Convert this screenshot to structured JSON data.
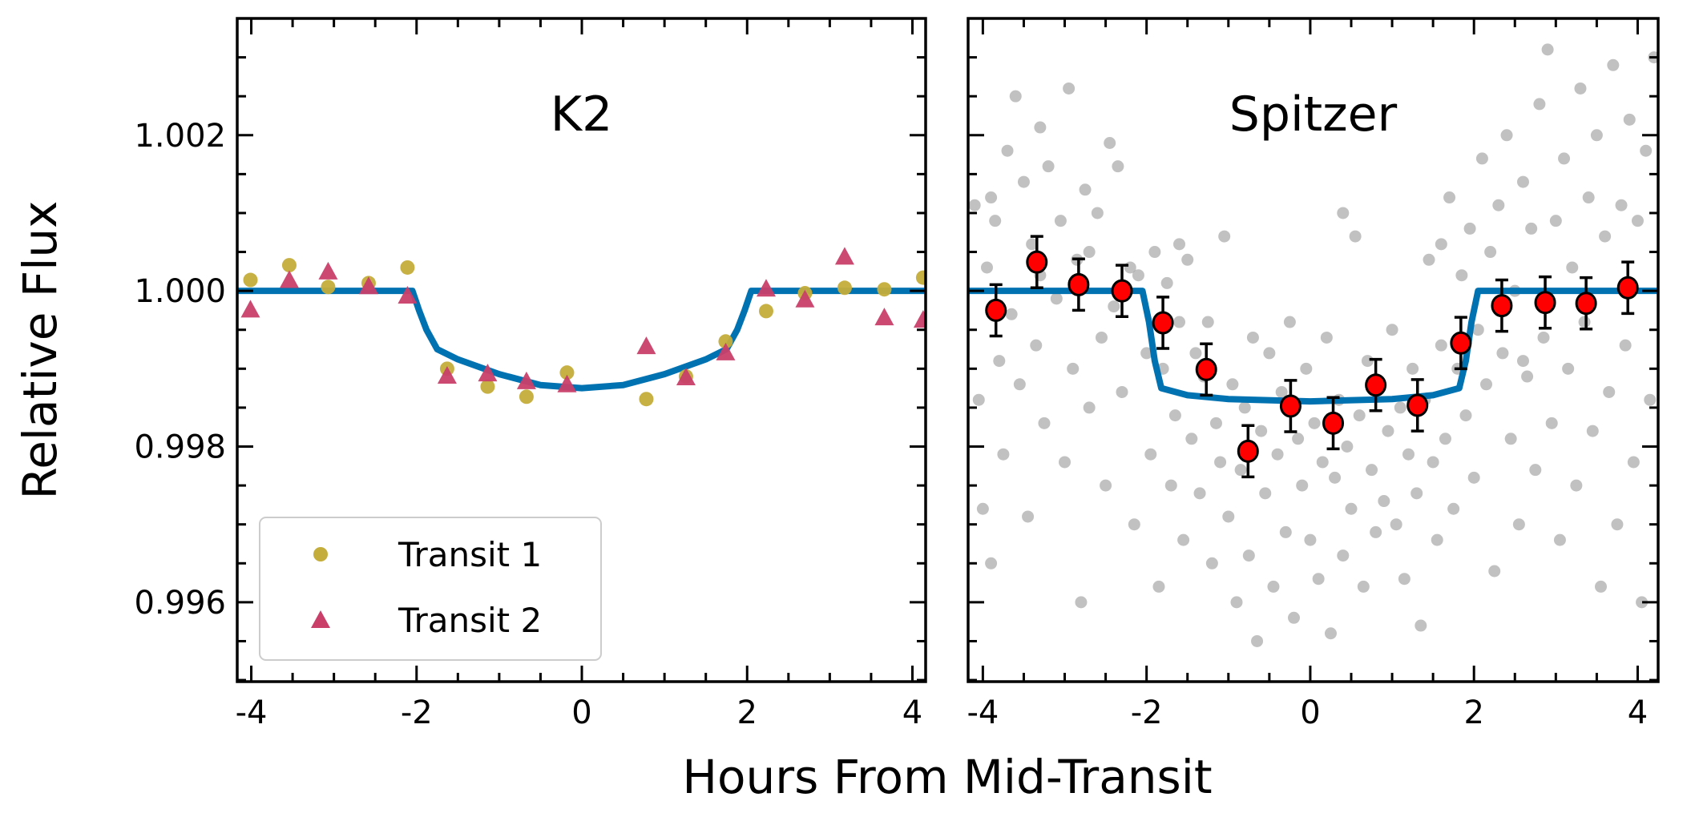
{
  "figure": {
    "ylabel": "Relative Flux",
    "xlabel": "Hours From Mid-Transit"
  },
  "chart_data": [
    {
      "type": "scatter",
      "title": "K2",
      "xlim": [
        -4.17,
        4.16
      ],
      "ylim": [
        0.99498,
        1.0035
      ],
      "xticks": [
        -4,
        -2,
        0,
        2,
        4
      ],
      "xtick_labels": [
        "-4",
        "-2",
        "0",
        "2",
        "4"
      ],
      "yticks": [
        0.996,
        0.998,
        1.0,
        1.002
      ],
      "ytick_labels": [
        "0.996",
        "0.998",
        "1.000",
        "1.002"
      ],
      "grid": false,
      "legend_position": "lower-left",
      "colors": {
        "transit1": "#c4ad3a",
        "transit2": "#c93f6a",
        "model": "#0072b2"
      },
      "series": [
        {
          "name": "Transit 1",
          "marker": "circle",
          "x": [
            -4.01,
            -3.54,
            -3.07,
            -2.58,
            -2.11,
            -1.63,
            -1.14,
            -0.67,
            -0.18,
            0.78,
            1.26,
            1.74,
            2.23,
            2.7,
            3.18,
            3.66,
            4.13
          ],
          "y": [
            1.00014,
            1.00033,
            1.00005,
            1.0001,
            1.0003,
            0.999,
            0.99877,
            0.99864,
            0.99895,
            0.99861,
            0.9989,
            0.99935,
            0.99974,
            0.99997,
            1.00004,
            1.00002,
            1.00017
          ]
        },
        {
          "name": "Transit 2",
          "marker": "triangle",
          "x": [
            -4.01,
            -3.54,
            -3.07,
            -2.58,
            -2.11,
            -1.63,
            -1.14,
            -0.67,
            -0.18,
            0.78,
            1.26,
            1.74,
            2.23,
            2.7,
            3.18,
            3.66,
            4.13
          ],
          "y": [
            0.99975,
            1.00013,
            1.00024,
            1.00005,
            0.99993,
            0.9989,
            0.99893,
            0.99883,
            0.99879,
            0.99928,
            0.99888,
            0.9992,
            1.00002,
            0.99988,
            1.00043,
            0.99965,
            0.99962
          ]
        }
      ],
      "model": [
        [
          -4.17,
          1
        ],
        [
          -2.05,
          1
        ],
        [
          -1.97,
          0.99975
        ],
        [
          -1.88,
          0.9995
        ],
        [
          -1.75,
          0.99925
        ],
        [
          -1.5,
          0.99912
        ],
        [
          -1,
          0.99893
        ],
        [
          -0.5,
          0.99879
        ],
        [
          0,
          0.99875
        ],
        [
          0.5,
          0.99879
        ],
        [
          1,
          0.99893
        ],
        [
          1.5,
          0.99912
        ],
        [
          1.75,
          0.99925
        ],
        [
          1.88,
          0.9995
        ],
        [
          1.97,
          0.99975
        ],
        [
          2.05,
          1
        ],
        [
          4.16,
          1
        ]
      ]
    },
    {
      "type": "scatter",
      "title": "Spitzer",
      "xlim": [
        -4.18,
        4.25
      ],
      "ylim": [
        0.99498,
        1.0035
      ],
      "xticks": [
        -4,
        -2,
        0,
        2,
        4
      ],
      "xtick_labels": [
        "-4",
        "-2",
        "0",
        "2",
        "4"
      ],
      "yticks": [
        0.996,
        0.998,
        1.0,
        1.002
      ],
      "grid": false,
      "colors": {
        "unbinned": "#a0a0a0",
        "binned": "#ff0000",
        "model": "#0072b2"
      },
      "unbinned": [
        [
          -4.1,
          1.0011
        ],
        [
          -4.05,
          0.9986
        ],
        [
          -4.0,
          0.9972
        ],
        [
          -3.95,
          1.0003
        ],
        [
          -3.9,
          0.9965
        ],
        [
          -3.85,
          1.0009
        ],
        [
          -3.8,
          0.9991
        ],
        [
          -3.75,
          0.9979
        ],
        [
          -3.7,
          1.0018
        ],
        [
          -3.65,
          0.9997
        ],
        [
          -3.6,
          1.0025
        ],
        [
          -3.55,
          0.9988
        ],
        [
          -3.5,
          1.0014
        ],
        [
          -3.45,
          0.9971
        ],
        [
          -3.4,
          1.0006
        ],
        [
          -3.35,
          0.9993
        ],
        [
          -3.3,
          1.0021
        ],
        [
          -3.25,
          0.9983
        ],
        [
          -3.2,
          1.0016
        ],
        [
          -3.1,
          0.9999
        ],
        [
          -3.05,
          1.0009
        ],
        [
          -3.0,
          0.9978
        ],
        [
          -2.95,
          1.0026
        ],
        [
          -2.9,
          0.999
        ],
        [
          -2.85,
          1.0004
        ],
        [
          -2.8,
          0.996
        ],
        [
          -2.75,
          1.0013
        ],
        [
          -2.7,
          0.9985
        ],
        [
          -2.6,
          1.001
        ],
        [
          -2.55,
          0.9994
        ],
        [
          -2.5,
          0.9975
        ],
        [
          -2.45,
          1.0019
        ],
        [
          -2.4,
          0.9998
        ],
        [
          -2.35,
          1.0016
        ],
        [
          -2.3,
          0.9987
        ],
        [
          -2.2,
          1.0003
        ],
        [
          -2.15,
          0.997
        ],
        [
          -2.1,
          1.0002
        ],
        [
          -2.0,
          0.9992
        ],
        [
          -1.95,
          0.9979
        ],
        [
          -1.9,
          1.0005
        ],
        [
          -1.85,
          0.9962
        ],
        [
          -1.8,
          0.999
        ],
        [
          -1.75,
          1.0001
        ],
        [
          -1.7,
          0.9975
        ],
        [
          -1.65,
          0.9984
        ],
        [
          -1.6,
          0.9996
        ],
        [
          -1.55,
          0.9968
        ],
        [
          -1.5,
          1.0004
        ],
        [
          -1.45,
          0.9981
        ],
        [
          -1.4,
          0.9992
        ],
        [
          -1.35,
          0.9974
        ],
        [
          -1.3,
          0.9989
        ],
        [
          -1.25,
          0.9996
        ],
        [
          -1.2,
          0.9965
        ],
        [
          -1.15,
          0.9983
        ],
        [
          -1.1,
          0.9978
        ],
        [
          -1.05,
          1.0007
        ],
        [
          -1.0,
          0.9971
        ],
        [
          -0.95,
          0.9988
        ],
        [
          -0.9,
          0.996
        ],
        [
          -0.85,
          0.9977
        ],
        [
          -0.8,
          0.9985
        ],
        [
          -0.75,
          0.9966
        ],
        [
          -0.7,
          0.9994
        ],
        [
          -0.65,
          0.9955
        ],
        [
          -0.6,
          0.9982
        ],
        [
          -0.55,
          0.9974
        ],
        [
          -0.5,
          0.9992
        ],
        [
          -0.45,
          0.9962
        ],
        [
          -0.4,
          0.9979
        ],
        [
          -0.35,
          0.9987
        ],
        [
          -0.3,
          0.9969
        ],
        [
          -0.25,
          0.9996
        ],
        [
          -0.2,
          0.9958
        ],
        [
          -0.15,
          0.9981
        ],
        [
          -0.1,
          0.9975
        ],
        [
          -0.05,
          0.999
        ],
        [
          0.0,
          0.9968
        ],
        [
          0.05,
          0.9983
        ],
        [
          0.1,
          0.9963
        ],
        [
          0.15,
          0.9978
        ],
        [
          0.2,
          0.9994
        ],
        [
          0.25,
          0.9956
        ],
        [
          0.3,
          0.9976
        ],
        [
          0.35,
          0.9986
        ],
        [
          0.4,
          0.9966
        ],
        [
          0.45,
          0.998
        ],
        [
          0.5,
          0.9972
        ],
        [
          0.55,
          1.0007
        ],
        [
          0.6,
          0.9984
        ],
        [
          0.65,
          0.9962
        ],
        [
          0.7,
          0.9991
        ],
        [
          0.75,
          0.9977
        ],
        [
          0.8,
          0.9969
        ],
        [
          0.85,
          0.9988
        ],
        [
          0.9,
          0.9973
        ],
        [
          0.95,
          0.9982
        ],
        [
          1.0,
          0.9995
        ],
        [
          1.05,
          0.997
        ],
        [
          1.1,
          0.9985
        ],
        [
          1.15,
          0.9963
        ],
        [
          1.2,
          0.9979
        ],
        [
          1.25,
          0.999
        ],
        [
          1.3,
          0.9974
        ],
        [
          1.35,
          0.9957
        ],
        [
          1.4,
          0.9986
        ],
        [
          1.45,
          1.0004
        ],
        [
          1.5,
          0.9978
        ],
        [
          1.55,
          0.9968
        ],
        [
          1.6,
          0.9993
        ],
        [
          1.65,
          0.9981
        ],
        [
          1.7,
          1.0012
        ],
        [
          1.75,
          0.9972
        ],
        [
          1.8,
          0.999
        ],
        [
          1.85,
          1.0002
        ],
        [
          1.9,
          0.9984
        ],
        [
          1.95,
          1.0008
        ],
        [
          2.0,
          0.9976
        ],
        [
          2.05,
          0.9995
        ],
        [
          2.1,
          1.0017
        ],
        [
          2.15,
          0.9988
        ],
        [
          2.2,
          1.0005
        ],
        [
          2.25,
          0.9964
        ],
        [
          2.3,
          1.0011
        ],
        [
          2.35,
          0.9992
        ],
        [
          2.4,
          1.002
        ],
        [
          2.45,
          0.9981
        ],
        [
          2.5,
          1.0
        ],
        [
          2.55,
          0.997
        ],
        [
          2.6,
          1.0014
        ],
        [
          2.65,
          0.9989
        ],
        [
          2.7,
          1.0008
        ],
        [
          2.75,
          0.9977
        ],
        [
          2.8,
          1.0024
        ],
        [
          2.85,
          0.9994
        ],
        [
          2.9,
          1.0031
        ],
        [
          2.95,
          0.9983
        ],
        [
          3.0,
          1.0009
        ],
        [
          3.05,
          0.9968
        ],
        [
          3.1,
          1.0017
        ],
        [
          3.15,
          0.999
        ],
        [
          3.2,
          1.0003
        ],
        [
          3.25,
          0.9975
        ],
        [
          3.3,
          1.0026
        ],
        [
          3.35,
          0.9996
        ],
        [
          3.4,
          1.0012
        ],
        [
          3.45,
          0.9982
        ],
        [
          3.5,
          1.002
        ],
        [
          3.55,
          0.9962
        ],
        [
          3.6,
          1.0007
        ],
        [
          3.65,
          0.9987
        ],
        [
          3.7,
          1.0029
        ],
        [
          3.75,
          0.997
        ],
        [
          3.8,
          1.0011
        ],
        [
          3.85,
          0.9993
        ],
        [
          3.9,
          1.0022
        ],
        [
          3.95,
          0.9978
        ],
        [
          4.0,
          1.0009
        ],
        [
          4.05,
          0.996
        ],
        [
          4.1,
          1.0018
        ],
        [
          4.15,
          0.9986
        ],
        [
          4.2,
          1.003
        ],
        [
          -3.9,
          1.0012
        ],
        [
          -3.3,
          1.0002
        ],
        [
          -2.7,
          1.0005
        ],
        [
          -1.6,
          1.0006
        ],
        [
          0.4,
          1.001
        ],
        [
          1.6,
          1.0006
        ],
        [
          2.6,
          0.9991
        ]
      ],
      "binned": {
        "x": [
          -3.84,
          -3.34,
          -2.83,
          -2.3,
          -1.8,
          -1.27,
          -0.76,
          -0.24,
          0.28,
          0.8,
          1.31,
          1.84,
          2.34,
          2.87,
          3.37,
          3.88
        ],
        "y": [
          0.99975,
          1.00037,
          1.00008,
          1.0,
          0.99959,
          0.99899,
          0.99794,
          0.99852,
          0.9983,
          0.99879,
          0.99853,
          0.99933,
          0.99981,
          0.99985,
          0.99984,
          1.00004
        ],
        "yerr": 0.00033
      },
      "model": [
        [
          -4.18,
          1
        ],
        [
          -2.05,
          1
        ],
        [
          -1.97,
          0.9996
        ],
        [
          -1.9,
          0.9991
        ],
        [
          -1.82,
          0.99875
        ],
        [
          -1.5,
          0.99866
        ],
        [
          -1,
          0.99861
        ],
        [
          0,
          0.99858
        ],
        [
          1,
          0.99861
        ],
        [
          1.5,
          0.99866
        ],
        [
          1.82,
          0.99875
        ],
        [
          1.9,
          0.9991
        ],
        [
          1.97,
          0.9996
        ],
        [
          2.05,
          1
        ],
        [
          4.25,
          1
        ]
      ]
    }
  ]
}
